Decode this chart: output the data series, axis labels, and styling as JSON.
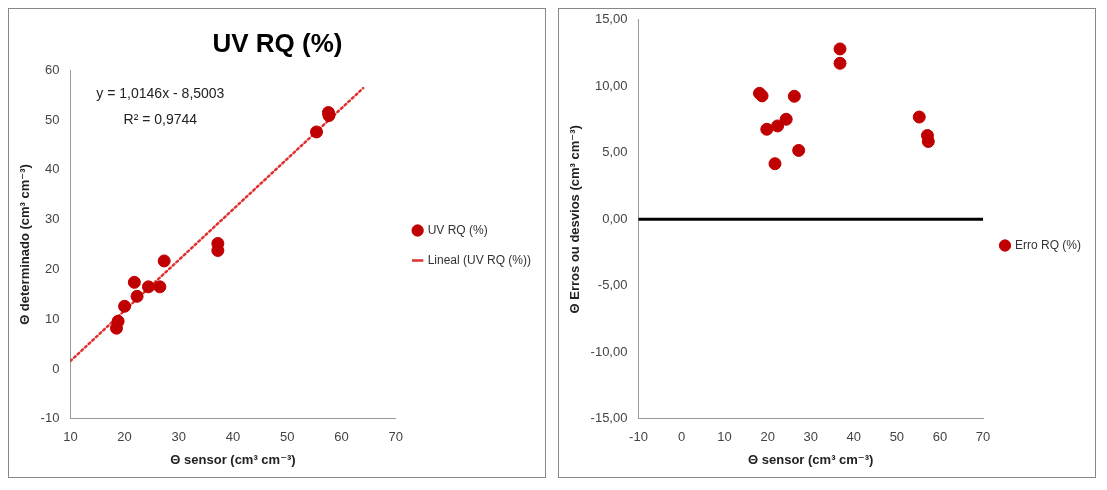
{
  "chart_data": [
    {
      "type": "scatter",
      "title": "UV RQ (%)",
      "xlabel": "Θ sensor (cm³ cm⁻³)",
      "ylabel": "Θ determinado (cm³ cm⁻³)",
      "xlim": [
        10,
        70
      ],
      "xticks": [
        10,
        20,
        30,
        40,
        50,
        60,
        70
      ],
      "ylim": [
        -10,
        60
      ],
      "yticks": [
        -10,
        0,
        10,
        20,
        30,
        40,
        50,
        60
      ],
      "grid": false,
      "legend": "right",
      "marker": "circle",
      "annotations": [
        "y = 1,0146x - 8,5003",
        "R² = 0,9744"
      ],
      "series": [
        {
          "name": "UV RQ (%)",
          "color": "#c00000",
          "type": "scatter",
          "x": [
            18.5,
            18.8,
            20.0,
            21.8,
            22.3,
            24.4,
            26.5,
            27.3,
            37.2,
            37.2,
            55.4,
            57.6,
            57.7
          ],
          "values": [
            8.2,
            9.6,
            12.6,
            17.4,
            14.6,
            16.5,
            16.5,
            21.7,
            25.2,
            23.8,
            47.6,
            51.5,
            50.9
          ]
        },
        {
          "name": "Lineal (UV RQ (%))",
          "color": "#e0302f",
          "type": "line",
          "line_style": "dotted",
          "marker": "none",
          "x": [
            10,
            64
          ],
          "values": [
            1.6,
            56.4
          ]
        }
      ]
    },
    {
      "type": "scatter",
      "xlabel": "Θ sensor (cm³ cm⁻³)",
      "ylabel": "Θ Erros ou desvios (cm³ cm⁻³)",
      "xlim": [
        -10,
        70
      ],
      "xticks": [
        -10,
        0,
        10,
        20,
        30,
        40,
        50,
        60,
        70
      ],
      "ylim": [
        -15,
        15
      ],
      "yticks": [
        {
          "value": -15,
          "label": "-15,00"
        },
        {
          "value": -10,
          "label": "-10,00"
        },
        {
          "value": -5,
          "label": "-5,00"
        },
        {
          "value": 0,
          "label": "0,00"
        },
        {
          "value": 5,
          "label": "5,00"
        },
        {
          "value": 10,
          "label": "10,00"
        },
        {
          "value": 15,
          "label": "15,00"
        }
      ],
      "grid": false,
      "legend": "right",
      "marker": "circle",
      "ref_lines": [
        {
          "axis": "y",
          "value": 0,
          "color": "#000000"
        }
      ],
      "series": [
        {
          "name": "Erro RQ (%)",
          "color": "#c00000",
          "type": "scatter",
          "x": [
            18.1,
            18.7,
            19.8,
            21.7,
            22.3,
            24.3,
            26.2,
            27.2,
            36.8,
            36.8,
            55.2,
            57.1,
            57.3
          ],
          "values": [
            9.47,
            9.28,
            6.77,
            4.18,
            7.02,
            7.52,
            9.25,
            5.18,
            12.81,
            11.73,
            7.69,
            6.3,
            5.85
          ]
        }
      ]
    }
  ]
}
